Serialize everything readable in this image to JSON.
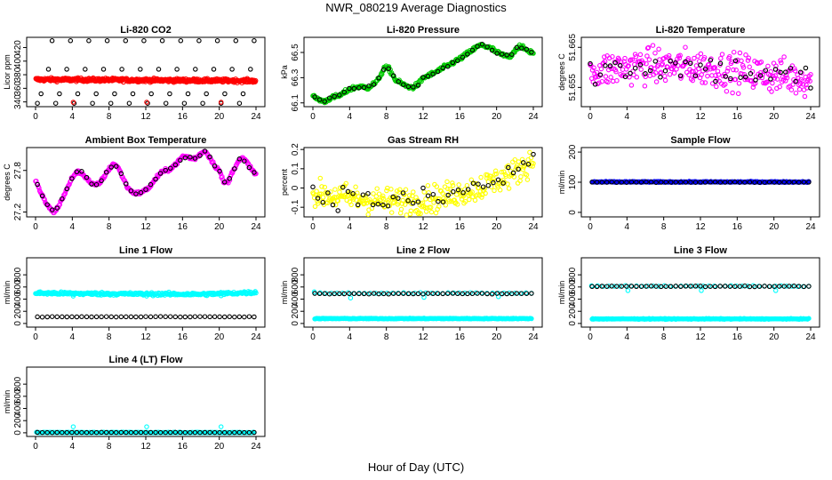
{
  "figure": {
    "title": "NWR_080219  Average Diagnostics",
    "xlabel": "Hour of Day (UTC)"
  },
  "colors": {
    "black": "#000000",
    "red": "#ff0000",
    "green": "#00cc00",
    "magenta": "#ff00ff",
    "yellow": "#ffff00",
    "blue": "#0000ff",
    "cyan": "#00ffff"
  },
  "chart_data": [
    {
      "id": "co2",
      "type": "scatter",
      "title": "Li-820 CO2",
      "ylabel": "Licor ppm",
      "xlim": [
        0,
        24
      ],
      "ylim": [
        333,
        435
      ],
      "xticks": [
        0,
        4,
        8,
        12,
        16,
        20,
        24
      ],
      "yticks": [
        340,
        360,
        380,
        400,
        420
      ],
      "series": [
        {
          "name": "reference levels",
          "color": "black",
          "kind": "levels",
          "levels": [
            338,
            352,
            372,
            388,
            430
          ]
        },
        {
          "name": "sample",
          "color": "red",
          "kind": "band",
          "start": 373,
          "end": 371,
          "noise": 1.2
        },
        {
          "name": "outliers",
          "color": "red",
          "kind": "points",
          "x": [
            4.1,
            12.1,
            20.2
          ],
          "y": [
            339.5,
            339.5,
            339.5
          ]
        }
      ]
    },
    {
      "id": "pressure",
      "type": "scatter",
      "title": "Li-820 Pressure",
      "ylabel": "kPa",
      "xlim": [
        0,
        24
      ],
      "ylim": [
        66.07,
        66.62
      ],
      "xticks": [
        0,
        4,
        8,
        12,
        16,
        20,
        24
      ],
      "yticks": [
        66.1,
        66.3,
        66.5
      ],
      "series": [
        {
          "name": "sample",
          "color": "green",
          "kind": "curve",
          "x": [
            0,
            1.2,
            2,
            3,
            4,
            5,
            6,
            7,
            7.8,
            8.3,
            9,
            10,
            10.8,
            11.5,
            12,
            13,
            14,
            15,
            16,
            17,
            18,
            18.5,
            19,
            19.5,
            20,
            21,
            21.5,
            22,
            22.5,
            23,
            23.5,
            24
          ],
          "y": [
            66.15,
            66.11,
            66.14,
            66.16,
            66.21,
            66.23,
            66.22,
            66.27,
            66.38,
            66.37,
            66.28,
            66.24,
            66.22,
            66.25,
            66.3,
            66.33,
            66.37,
            66.41,
            66.45,
            66.5,
            66.55,
            66.56,
            66.54,
            66.53,
            66.5,
            66.47,
            66.47,
            66.52,
            66.55,
            66.53,
            66.51,
            66.5
          ],
          "noise": 0.008,
          "count": 320
        },
        {
          "name": "reference",
          "color": "black",
          "kind": "curve-sparse",
          "noise": 0.005,
          "count": 45
        }
      ]
    },
    {
      "id": "licor_temp",
      "type": "scatter",
      "title": "Li-820 Temperature",
      "ylabel": "degrees C",
      "xlim": [
        0,
        24
      ],
      "ylim": [
        51.6502,
        51.6675
      ],
      "xticks": [
        0,
        4,
        8,
        12,
        16,
        20,
        24
      ],
      "yticks": [
        51.655,
        51.665
      ],
      "series": [
        {
          "name": "sample",
          "color": "magenta",
          "kind": "noisy",
          "x": [
            0,
            6,
            12,
            18,
            24
          ],
          "y": [
            51.659,
            51.6605,
            51.66,
            51.6585,
            51.657
          ],
          "noise": 0.0022,
          "count": 300
        },
        {
          "name": "reference",
          "color": "black",
          "kind": "noisy",
          "x": [
            0,
            6,
            12,
            18,
            24
          ],
          "y": [
            51.659,
            51.6605,
            51.66,
            51.6585,
            51.657
          ],
          "noise": 0.0018,
          "count": 45
        }
      ]
    },
    {
      "id": "box_temp",
      "type": "scatter",
      "title": "Ambient Box Temperature",
      "ylabel": "degrees C",
      "xlim": [
        0,
        24
      ],
      "ylim": [
        27.13,
        28.13
      ],
      "xticks": [
        0,
        4,
        8,
        12,
        16,
        20,
        24
      ],
      "yticks": [
        27.2,
        27.8
      ],
      "series": [
        {
          "name": "sample",
          "color": "magenta",
          "kind": "curve",
          "x": [
            0,
            0.5,
            1,
            1.5,
            2,
            2.5,
            3,
            3.5,
            4,
            4.5,
            5,
            5.5,
            6,
            6.5,
            7,
            7.5,
            8,
            8.5,
            9,
            9.5,
            10,
            10.5,
            11,
            11.5,
            12,
            12.5,
            13,
            13.5,
            14,
            14.5,
            15,
            15.5,
            16,
            16.5,
            17,
            17.5,
            18,
            18.5,
            19,
            19.5,
            20,
            20.5,
            21,
            21.5,
            22,
            22.5,
            23,
            23.5,
            24
          ],
          "y": [
            27.66,
            27.5,
            27.36,
            27.26,
            27.2,
            27.28,
            27.42,
            27.55,
            27.7,
            27.78,
            27.76,
            27.7,
            27.62,
            27.58,
            27.62,
            27.72,
            27.82,
            27.9,
            27.84,
            27.7,
            27.56,
            27.49,
            27.47,
            27.48,
            27.52,
            27.57,
            27.67,
            27.75,
            27.79,
            27.81,
            27.86,
            27.92,
            28.0,
            28.0,
            27.97,
            27.98,
            28.05,
            28.08,
            27.98,
            27.87,
            27.8,
            27.62,
            27.64,
            27.8,
            27.92,
            27.98,
            27.92,
            27.82,
            27.74
          ],
          "noise": 0.012,
          "count": 320
        },
        {
          "name": "reference",
          "color": "black",
          "kind": "curve-sparse",
          "noise": 0.01,
          "count": 45
        }
      ]
    },
    {
      "id": "rh",
      "type": "scatter",
      "title": "Gas Stream RH",
      "ylabel": "percent",
      "xlim": [
        0,
        24
      ],
      "ylim": [
        -0.15,
        0.21
      ],
      "xticks": [
        0,
        4,
        8,
        12,
        16,
        20,
        24
      ],
      "yticks": [
        -0.1,
        0.0,
        0.1,
        0.2
      ],
      "series": [
        {
          "name": "sample",
          "color": "yellow",
          "kind": "noisy",
          "x": [
            0,
            4,
            8,
            12,
            14,
            16,
            18,
            20,
            22,
            24
          ],
          "y": [
            -0.03,
            -0.05,
            -0.07,
            -0.06,
            -0.05,
            -0.02,
            0.0,
            0.04,
            0.08,
            0.15
          ],
          "noise": 0.035,
          "count": 300
        },
        {
          "name": "reference",
          "color": "black",
          "kind": "noisy",
          "x": [
            0,
            4,
            8,
            12,
            14,
            16,
            18,
            20,
            22,
            24
          ],
          "y": [
            -0.03,
            -0.05,
            -0.07,
            -0.06,
            -0.05,
            -0.02,
            0.0,
            0.04,
            0.08,
            0.15
          ],
          "noise": 0.03,
          "count": 45
        }
      ]
    },
    {
      "id": "sample_flow",
      "type": "scatter",
      "title": "Sample Flow",
      "ylabel": "ml/min",
      "xlim": [
        0,
        24
      ],
      "ylim": [
        -15,
        215
      ],
      "xticks": [
        0,
        4,
        8,
        12,
        16,
        20,
        24
      ],
      "yticks": [
        0,
        100,
        200
      ],
      "series": [
        {
          "name": "sample",
          "color": "blue",
          "kind": "flat",
          "value": 101,
          "noise": 0.8,
          "count": 300
        },
        {
          "name": "reference",
          "color": "black",
          "kind": "flat",
          "value": 100,
          "noise": 0.4,
          "count": 45
        }
      ]
    },
    {
      "id": "line1",
      "type": "scatter",
      "title": "Line 1 Flow",
      "ylabel": "ml/min",
      "xlim": [
        0,
        24
      ],
      "ylim": [
        -60,
        1080
      ],
      "xticks": [
        0,
        4,
        8,
        12,
        16,
        20,
        24
      ],
      "yticks": [
        0,
        200,
        400,
        600,
        800
      ],
      "series": [
        {
          "name": "cyan",
          "color": "cyan",
          "kind": "flat-curve",
          "x": [
            0,
            6,
            12,
            18,
            20,
            24
          ],
          "y": [
            500,
            490,
            485,
            480,
            490,
            510
          ],
          "noise": 12,
          "count": 320
        },
        {
          "name": "dips",
          "color": "cyan",
          "kind": "points",
          "x": [
            4.1,
            12.1,
            20.2
          ],
          "y": [
            450,
            450,
            455
          ]
        },
        {
          "name": "reference",
          "color": "black",
          "kind": "flat",
          "value": 110,
          "noise": 2,
          "count": 45
        }
      ]
    },
    {
      "id": "line2",
      "type": "scatter",
      "title": "Line 2 Flow",
      "ylabel": "ml/min",
      "xlim": [
        0,
        24
      ],
      "ylim": [
        -60,
        1080
      ],
      "xticks": [
        0,
        4,
        8,
        12,
        16,
        20,
        24
      ],
      "yticks": [
        0,
        200,
        400,
        600,
        800
      ],
      "series": [
        {
          "name": "cyan band",
          "color": "cyan",
          "kind": "flat",
          "value": 80,
          "noise": 3,
          "count": 320
        },
        {
          "name": "cyan upper",
          "color": "cyan",
          "kind": "flat",
          "value": 500,
          "noise": 4,
          "count": 40
        },
        {
          "name": "dips",
          "color": "cyan",
          "kind": "points",
          "x": [
            0.15,
            4.1,
            12.1,
            20.2
          ],
          "y": [
            520,
            420,
            430,
            440
          ]
        },
        {
          "name": "reference",
          "color": "black",
          "kind": "flat",
          "value": 490,
          "noise": 3,
          "count": 45
        }
      ]
    },
    {
      "id": "line3",
      "type": "scatter",
      "title": "Line 3 Flow",
      "ylabel": "ml/min",
      "xlim": [
        0,
        24
      ],
      "ylim": [
        -60,
        1080
      ],
      "xticks": [
        0,
        4,
        8,
        12,
        16,
        20,
        24
      ],
      "yticks": [
        0,
        200,
        400,
        600,
        800
      ],
      "series": [
        {
          "name": "cyan band",
          "color": "cyan",
          "kind": "flat",
          "value": 75,
          "noise": 3,
          "count": 320
        },
        {
          "name": "cyan upper",
          "color": "cyan",
          "kind": "flat",
          "value": 615,
          "noise": 4,
          "count": 40
        },
        {
          "name": "dips",
          "color": "cyan",
          "kind": "points",
          "x": [
            0.15,
            4.1,
            12.1,
            20.2
          ],
          "y": [
            620,
            540,
            540,
            540
          ]
        },
        {
          "name": "reference",
          "color": "black",
          "kind": "flat",
          "value": 610,
          "noise": 3,
          "count": 45
        }
      ]
    },
    {
      "id": "line4",
      "type": "scatter",
      "title": "Line 4 (LT) Flow",
      "ylabel": "ml/min",
      "xlim": [
        0,
        24
      ],
      "ylim": [
        -60,
        1080
      ],
      "xticks": [
        0,
        4,
        8,
        12,
        16,
        20,
        24
      ],
      "yticks": [
        0,
        200,
        400,
        600,
        800
      ],
      "series": [
        {
          "name": "cyan band",
          "color": "cyan",
          "kind": "flat",
          "value": 5,
          "noise": 2,
          "count": 320
        },
        {
          "name": "spikes",
          "color": "cyan",
          "kind": "points",
          "x": [
            0.1,
            4.1,
            12.1,
            20.2
          ],
          "y": [
            10,
            100,
            100,
            100
          ]
        },
        {
          "name": "reference",
          "color": "black",
          "kind": "flat",
          "value": 5,
          "noise": 1,
          "count": 45
        }
      ]
    }
  ]
}
